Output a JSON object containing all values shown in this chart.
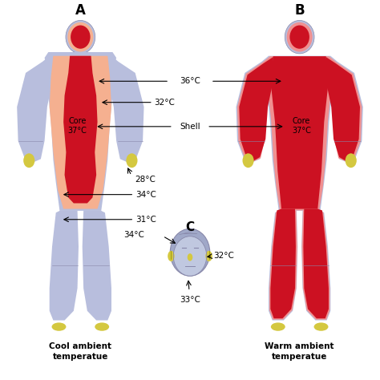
{
  "label_A": "A",
  "label_B": "B",
  "label_C": "C",
  "caption_A": "Cool ambient\ntemperatue",
  "caption_B": "Warm ambient\ntemperatue",
  "core_label_A": "Core\n37°C",
  "core_label_B": "Core\n37°C",
  "temp_36": "36°C",
  "temp_32": "32°C",
  "shell_label": "Shell",
  "temp_28": "28°C",
  "temp_34_leg": "34°C",
  "temp_31": "31°C",
  "temp_34_face": "34°C",
  "temp_32_face": "32°C",
  "temp_33_face": "33°C",
  "color_outer": "#b8bedd",
  "color_shell_A": "#f5b090",
  "color_core": "#cc1122",
  "color_shell_B": "#f09090",
  "color_hands_feet": "#d4c840",
  "color_face_bg": "#c0c8e0",
  "color_face_accent": "#d4c840",
  "color_outline": "#8888aa",
  "bg_color": "#ffffff",
  "figsize": [
    4.74,
    4.74
  ],
  "dpi": 100
}
